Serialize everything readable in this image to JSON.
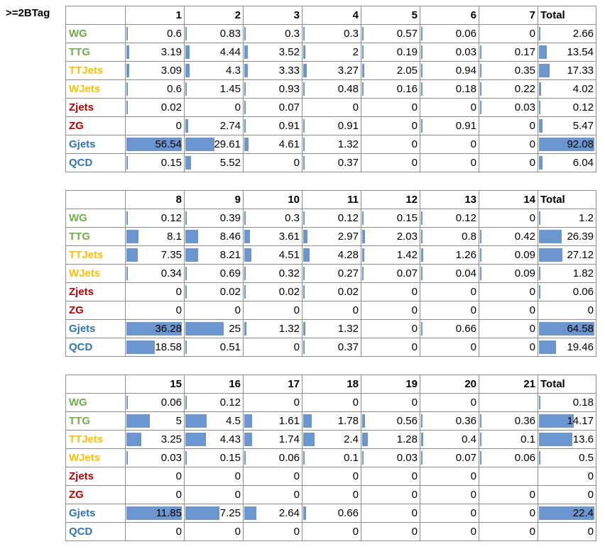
{
  "tag_label": ">=2BTag",
  "colors": {
    "bar": "#6c96cf"
  },
  "processes": [
    {
      "name": "WG",
      "color": "#6fae48"
    },
    {
      "name": "TTG",
      "color": "#6fae48"
    },
    {
      "name": "TTJets",
      "color": "#ffc000"
    },
    {
      "name": "WJets",
      "color": "#ffc000"
    },
    {
      "name": "Zjets",
      "color": "#c00000"
    },
    {
      "name": "ZG",
      "color": "#c00000"
    },
    {
      "name": "Gjets",
      "color": "#2e75b6"
    },
    {
      "name": "QCD",
      "color": "#2e75b6"
    }
  ],
  "tables": [
    {
      "bins": [
        "1",
        "2",
        "3",
        "4",
        "5",
        "6",
        "7"
      ],
      "total_label": "Total",
      "rows": [
        {
          "values": [
            "0.6",
            "0.83",
            "0.3",
            "0.3",
            "0.57",
            "0.06",
            "0"
          ],
          "total": "2.66"
        },
        {
          "values": [
            "3.19",
            "4.44",
            "3.52",
            "2",
            "0.19",
            "0.03",
            "0.17"
          ],
          "total": "13.54"
        },
        {
          "values": [
            "3.09",
            "4.3",
            "3.33",
            "3.27",
            "2.05",
            "0.94",
            "0.35"
          ],
          "total": "17.33"
        },
        {
          "values": [
            "0.6",
            "1.45",
            "0.93",
            "0.48",
            "0.16",
            "0.18",
            "0.22"
          ],
          "total": "4.02"
        },
        {
          "values": [
            "0.02",
            "0",
            "0.07",
            "0",
            "0",
            "0",
            "0.03"
          ],
          "total": "0.12"
        },
        {
          "values": [
            "0",
            "2.74",
            "0.91",
            "0.91",
            "0",
            "0.91",
            "0"
          ],
          "total": "5.47"
        },
        {
          "values": [
            "56.54",
            "29.61",
            "4.61",
            "1.32",
            "0",
            "0",
            "0"
          ],
          "total": "92.08"
        },
        {
          "values": [
            "0.15",
            "5.52",
            "0",
            "0.37",
            "0",
            "0",
            "0"
          ],
          "total": "6.04"
        }
      ]
    },
    {
      "bins": [
        "8",
        "9",
        "10",
        "11",
        "12",
        "13",
        "14"
      ],
      "total_label": "Total",
      "rows": [
        {
          "values": [
            "0.12",
            "0.39",
            "0.3",
            "0.12",
            "0.15",
            "0.12",
            "0"
          ],
          "total": "1.2"
        },
        {
          "values": [
            "8.1",
            "8.46",
            "3.61",
            "2.97",
            "2.03",
            "0.8",
            "0.42"
          ],
          "total": "26.39"
        },
        {
          "values": [
            "7.35",
            "8.21",
            "4.51",
            "4.28",
            "1.42",
            "1.26",
            "0.09"
          ],
          "total": "27.12"
        },
        {
          "values": [
            "0.34",
            "0.69",
            "0.32",
            "0.27",
            "0.07",
            "0.04",
            "0.09"
          ],
          "total": "1.82"
        },
        {
          "values": [
            "0",
            "0.02",
            "0.02",
            "0.02",
            "0",
            "0",
            "0"
          ],
          "total": "0.06"
        },
        {
          "values": [
            "0",
            "0",
            "0",
            "0",
            "0",
            "0",
            "0"
          ],
          "total": "0"
        },
        {
          "values": [
            "36.28",
            "25",
            "1.32",
            "1.32",
            "0",
            "0.66",
            "0"
          ],
          "total": "64.58"
        },
        {
          "values": [
            "18.58",
            "0.51",
            "0",
            "0.37",
            "0",
            "0",
            "0"
          ],
          "total": "19.46"
        }
      ]
    },
    {
      "bins": [
        "15",
        "16",
        "17",
        "18",
        "19",
        "20",
        "21"
      ],
      "total_label": "Total",
      "rows": [
        {
          "values": [
            "0.06",
            "0.12",
            "0",
            "0",
            "0",
            "0",
            ""
          ],
          "total": "0.18"
        },
        {
          "values": [
            "5",
            "4.5",
            "1.61",
            "1.78",
            "0.56",
            "0.36",
            "0.36"
          ],
          "total": "14.17"
        },
        {
          "values": [
            "3.25",
            "4.43",
            "1.74",
            "2.4",
            "1.28",
            "0.4",
            "0.1"
          ],
          "total": "13.6"
        },
        {
          "values": [
            "0.03",
            "0.15",
            "0.06",
            "0.1",
            "0.03",
            "0.07",
            "0.06"
          ],
          "total": "0.5"
        },
        {
          "values": [
            "0",
            "0",
            "0",
            "0",
            "0",
            "0",
            ""
          ],
          "total": "0"
        },
        {
          "values": [
            "0",
            "0",
            "0",
            "0",
            "0",
            "0",
            "0"
          ],
          "total": "0"
        },
        {
          "values": [
            "11.85",
            "7.25",
            "2.64",
            "0.66",
            "0",
            "0",
            "0"
          ],
          "total": "22.4"
        },
        {
          "values": [
            "0",
            "0",
            "0",
            "0",
            "0",
            "0",
            "0"
          ],
          "total": "0"
        }
      ]
    }
  ]
}
